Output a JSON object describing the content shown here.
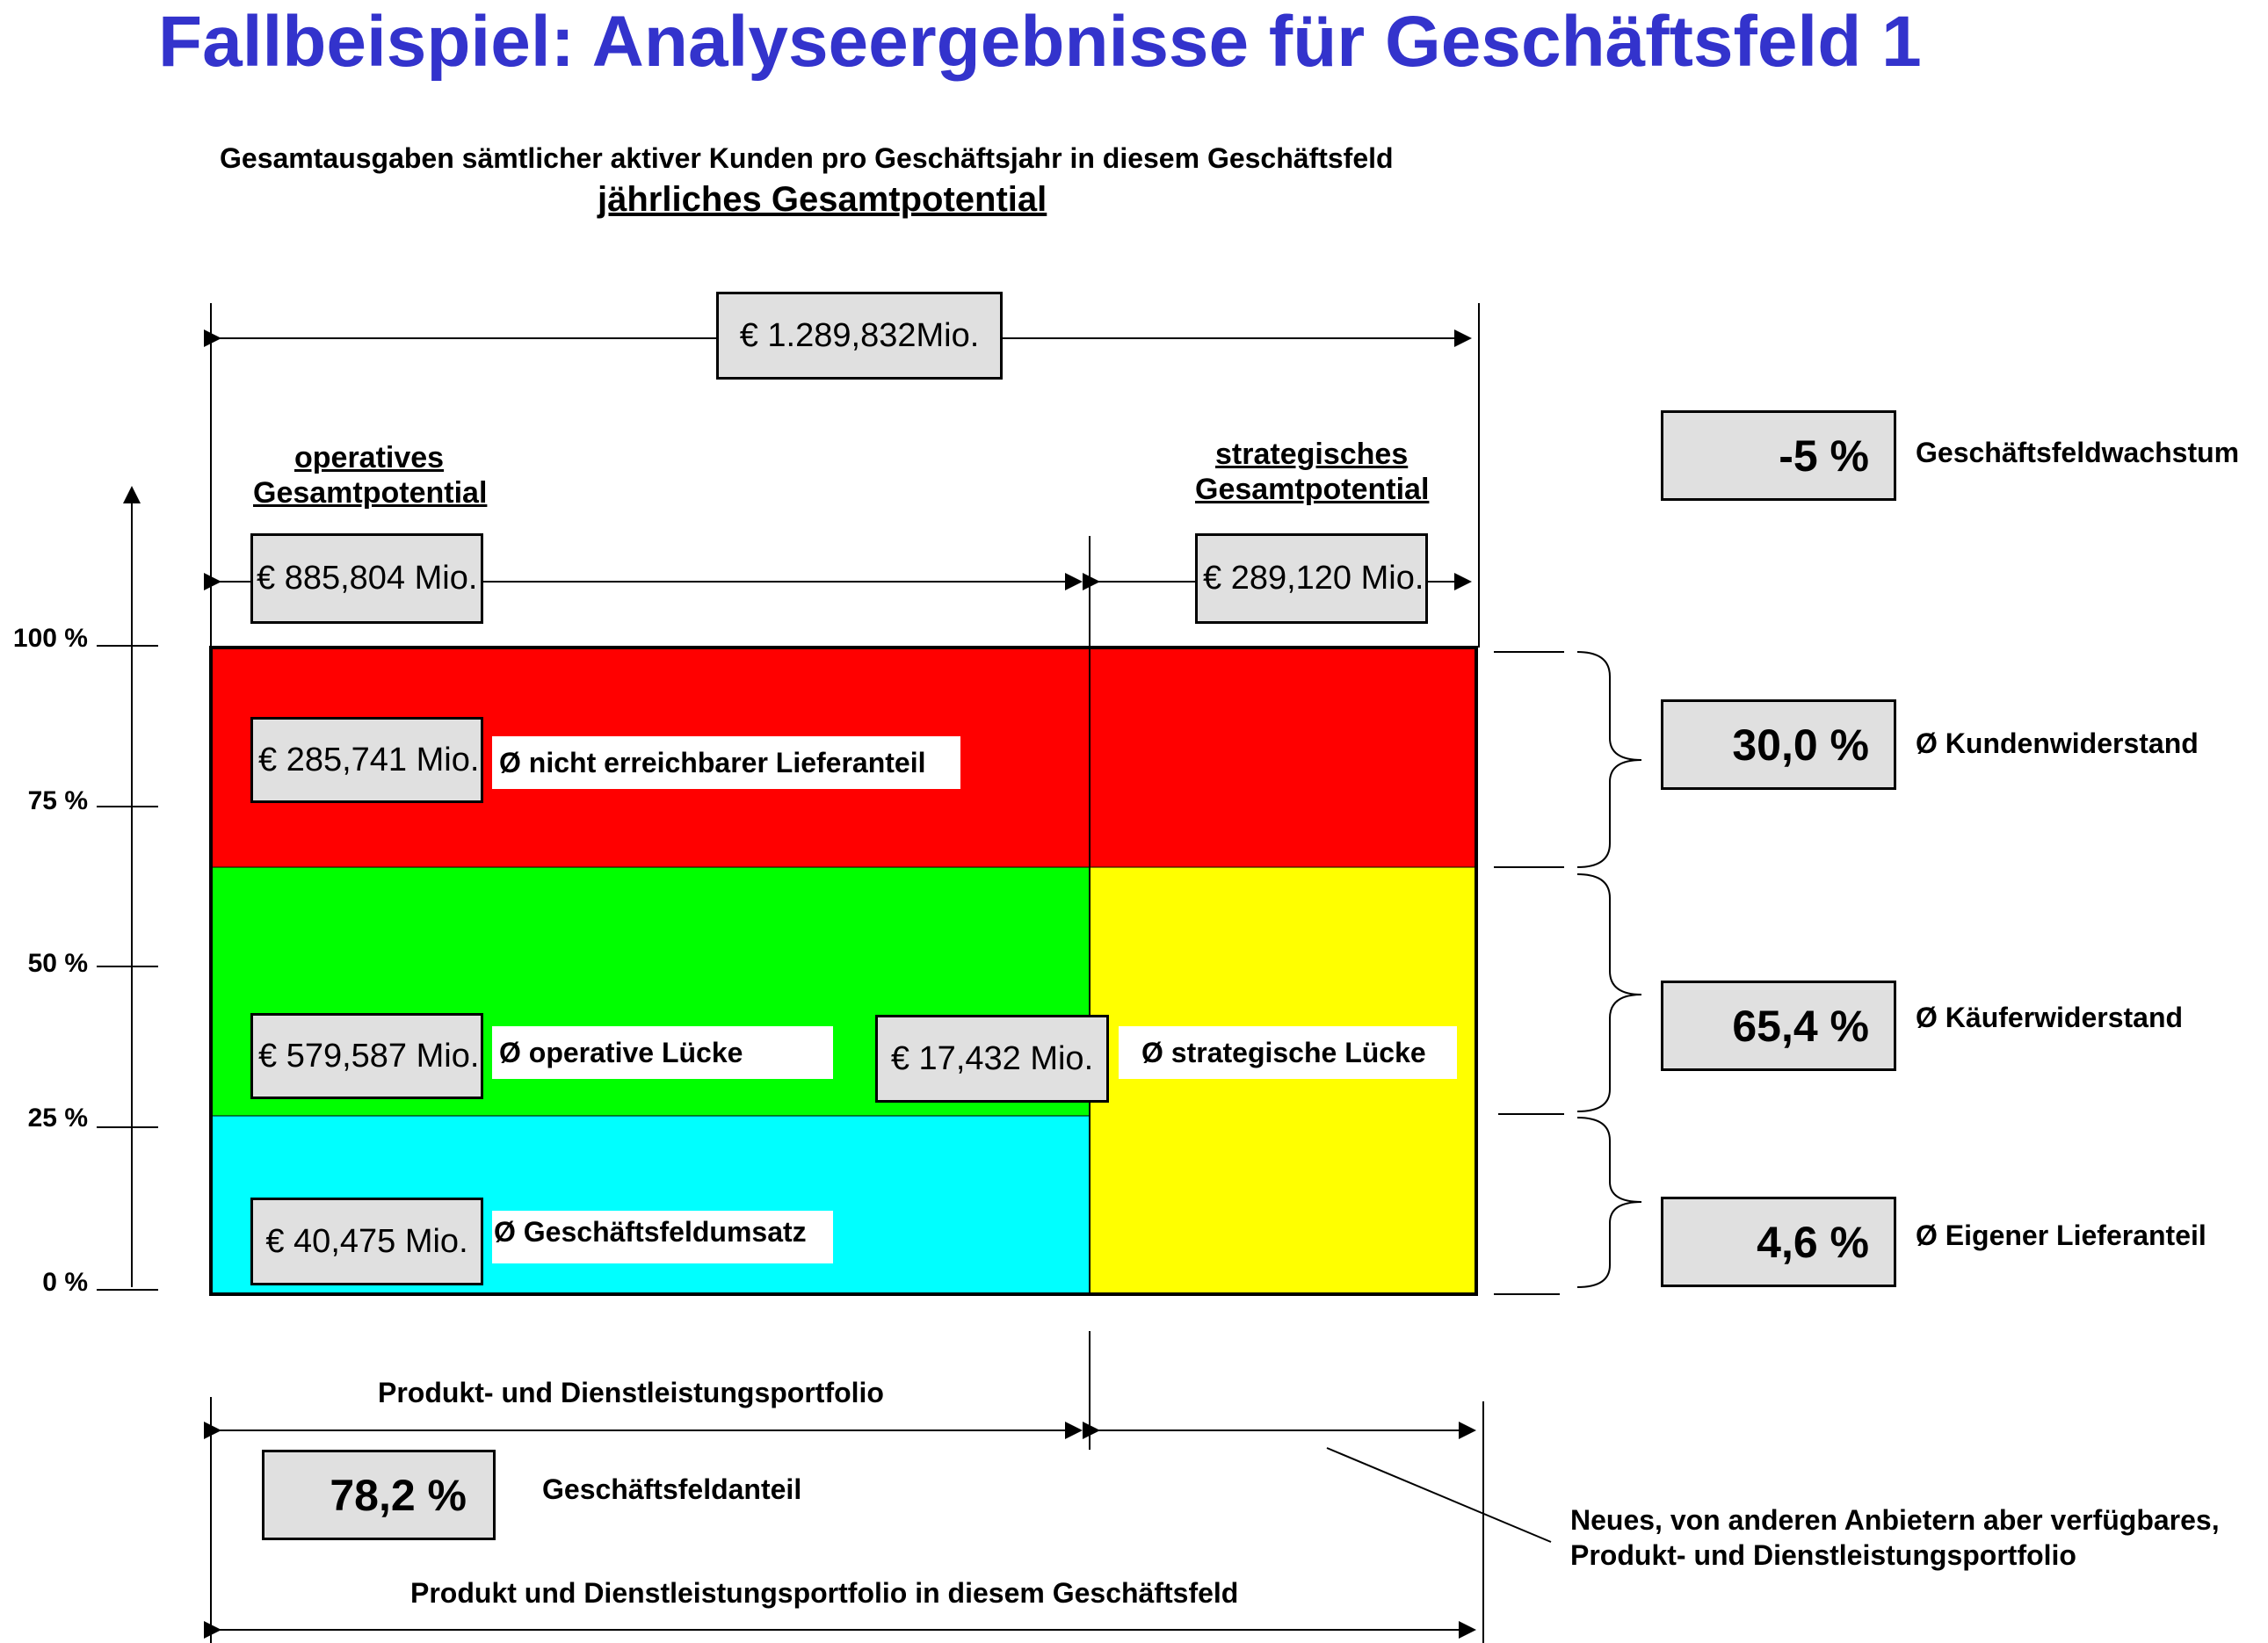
{
  "title": "Fallbeispiel: Analyseergebnisse für Geschäftsfeld 1",
  "subtitle_line1": "Gesamtausgaben  sämtlicher  aktiver  Kunden  pro  Geschäftsjahr  in  diesem  Geschäftsfeld",
  "subtitle_line2": "jährliches Gesamtpotential",
  "total_value": "€ 1.289,832Mio.",
  "operative": {
    "label_line1": "operatives",
    "label_line2": "Gesamtpotential",
    "value": "€ 885,804 Mio."
  },
  "strategic": {
    "label_line1": "strategisches",
    "label_line2": "Gesamtpotential",
    "value": "€ 289,120 Mio."
  },
  "axis_labels": [
    "100 %",
    "75 %",
    "50 %",
    "25 %",
    "0 %"
  ],
  "segments": {
    "unreachable": {
      "value": "€ 285,741 Mio.",
      "label": "Ø nicht erreichbarer Lieferanteil"
    },
    "operative_gap": {
      "value": "€ 579,587 Mio.",
      "label": "Ø operative Lücke"
    },
    "strategic_gap": {
      "value": "€ 17,432 Mio.",
      "label": "Ø strategische Lücke"
    },
    "revenue": {
      "value": "€ 40,475 Mio.",
      "label": "Ø Geschäftsfeldumsatz"
    }
  },
  "right_metrics": [
    {
      "value": "-5 %",
      "label": "Geschäftsfeldwachstum"
    },
    {
      "value": "30,0 %",
      "label": "Ø Kundenwiderstand"
    },
    {
      "value": "65,4 %",
      "label": "Ø Käuferwiderstand"
    },
    {
      "value": "4,6 %",
      "label": "Ø Eigener Lieferanteil"
    }
  ],
  "bottom": {
    "portfolio_label": "Produkt-  und  Dienstleistungsportfolio",
    "share_value": "78,2 %",
    "share_label": "Geschäftsfeldanteil",
    "portfolio_field_label": "Produkt  und  Dienstleistungsportfolio  in  diesem  Geschäftsfeld",
    "new_portfolio_line1": "Neues,  von  anderen  Anbietern  aber  verfügbares,",
    "new_portfolio_line2": "Produkt-  und  Dienstleistungsportfolio"
  },
  "colors": {
    "title": "#3333cc",
    "red": "#ff0000",
    "green": "#00ff00",
    "yellow": "#ffff00",
    "cyan": "#00ffff",
    "box": "#e0e0e0"
  }
}
